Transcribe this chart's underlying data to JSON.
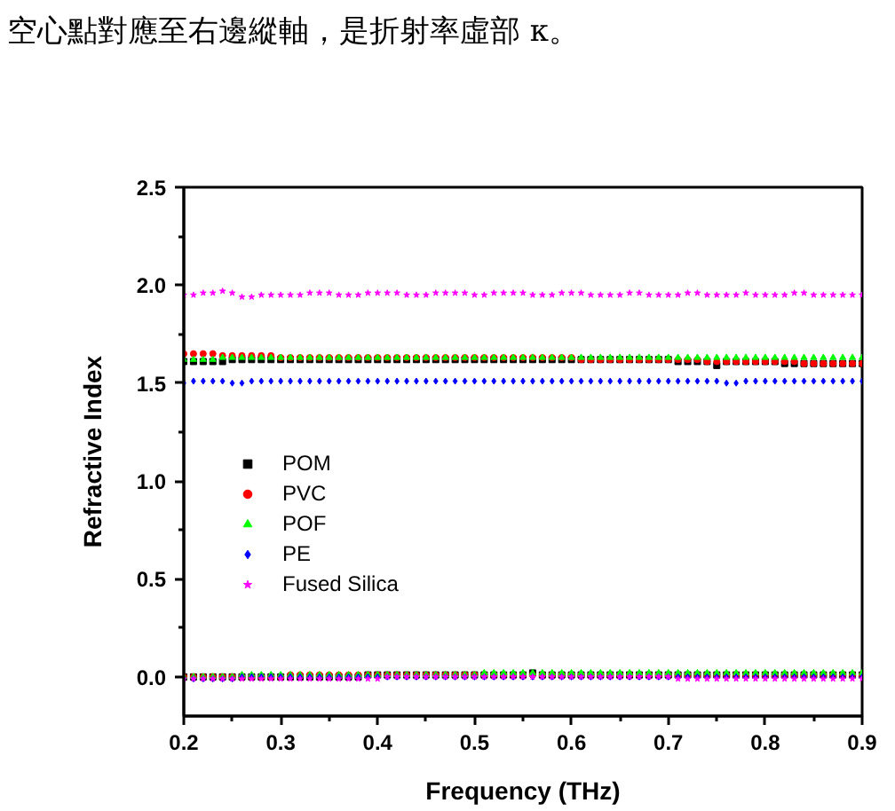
{
  "chart_data": {
    "type": "scatter",
    "annotations": [
      "空心點對應至右邊縱軸，是折射率虛部 κ。"
    ],
    "xlabel": "Frequency (THz)",
    "ylabel": "Refractive Index",
    "xlim": [
      0.2,
      0.9
    ],
    "xticks": [
      0.2,
      0.3,
      0.4,
      0.5,
      0.6,
      0.7,
      0.8,
      0.9
    ],
    "ylim": [
      -0.2,
      2.5
    ],
    "yticks": [
      {
        "value": 0,
        "label": "0.0"
      },
      0.5,
      {
        "value": 1,
        "label": "1.0"
      },
      1.5,
      {
        "value": 2,
        "label": "2.0"
      },
      2.5
    ],
    "legend": "left",
    "x": [
      0.2,
      0.21,
      0.22,
      0.23,
      0.24,
      0.25,
      0.26,
      0.27,
      0.28,
      0.29,
      0.3,
      0.31,
      0.32,
      0.33,
      0.34,
      0.35,
      0.36,
      0.37,
      0.38,
      0.39,
      0.4,
      0.41,
      0.42,
      0.43,
      0.44,
      0.45,
      0.46,
      0.47,
      0.48,
      0.49,
      0.5,
      0.51,
      0.52,
      0.53,
      0.54,
      0.55,
      0.56,
      0.57,
      0.58,
      0.59,
      0.6,
      0.61,
      0.62,
      0.63,
      0.64,
      0.65,
      0.66,
      0.67,
      0.68,
      0.69,
      0.7,
      0.71,
      0.72,
      0.73,
      0.74,
      0.75,
      0.76,
      0.77,
      0.78,
      0.79,
      0.8,
      0.81,
      0.82,
      0.83,
      0.84,
      0.85,
      0.86,
      0.87,
      0.88,
      0.89,
      0.9
    ],
    "series": [
      {
        "name": "POM",
        "color": "#000000",
        "marker": "square",
        "values": [
          1.61,
          1.61,
          1.61,
          1.61,
          1.61,
          1.62,
          1.62,
          1.62,
          1.62,
          1.62,
          1.62,
          1.62,
          1.62,
          1.62,
          1.62,
          1.62,
          1.62,
          1.62,
          1.62,
          1.62,
          1.62,
          1.62,
          1.62,
          1.62,
          1.62,
          1.62,
          1.62,
          1.62,
          1.62,
          1.62,
          1.62,
          1.62,
          1.62,
          1.62,
          1.62,
          1.62,
          1.62,
          1.62,
          1.62,
          1.62,
          1.62,
          1.62,
          1.62,
          1.62,
          1.62,
          1.62,
          1.62,
          1.62,
          1.62,
          1.62,
          1.62,
          1.61,
          1.61,
          1.61,
          1.61,
          1.59,
          1.61,
          1.61,
          1.61,
          1.61,
          1.61,
          1.61,
          1.6,
          1.6,
          1.6,
          1.6,
          1.6,
          1.6,
          1.6,
          1.6,
          1.6
        ]
      },
      {
        "name": "PVC",
        "color": "#ff0000",
        "marker": "circle",
        "values": [
          1.65,
          1.65,
          1.65,
          1.65,
          1.64,
          1.64,
          1.64,
          1.64,
          1.64,
          1.64,
          1.63,
          1.63,
          1.63,
          1.63,
          1.63,
          1.63,
          1.63,
          1.63,
          1.63,
          1.63,
          1.63,
          1.63,
          1.63,
          1.63,
          1.63,
          1.63,
          1.63,
          1.63,
          1.63,
          1.63,
          1.63,
          1.63,
          1.63,
          1.63,
          1.63,
          1.63,
          1.63,
          1.63,
          1.63,
          1.63,
          1.63,
          1.62,
          1.62,
          1.62,
          1.62,
          1.62,
          1.62,
          1.62,
          1.62,
          1.62,
          1.62,
          1.62,
          1.62,
          1.62,
          1.61,
          1.61,
          1.61,
          1.61,
          1.61,
          1.61,
          1.61,
          1.61,
          1.61,
          1.61,
          1.6,
          1.6,
          1.6,
          1.6,
          1.6,
          1.6,
          1.6
        ]
      },
      {
        "name": "POF",
        "color": "#00ff00",
        "marker": "triangle",
        "values": [
          1.62,
          1.62,
          1.62,
          1.62,
          1.63,
          1.63,
          1.63,
          1.63,
          1.63,
          1.63,
          1.63,
          1.63,
          1.63,
          1.63,
          1.63,
          1.63,
          1.63,
          1.63,
          1.63,
          1.63,
          1.63,
          1.63,
          1.63,
          1.63,
          1.63,
          1.63,
          1.63,
          1.63,
          1.63,
          1.63,
          1.63,
          1.63,
          1.63,
          1.63,
          1.63,
          1.63,
          1.63,
          1.63,
          1.63,
          1.63,
          1.63,
          1.63,
          1.63,
          1.63,
          1.63,
          1.63,
          1.63,
          1.63,
          1.63,
          1.63,
          1.63,
          1.63,
          1.63,
          1.63,
          1.63,
          1.63,
          1.63,
          1.63,
          1.63,
          1.63,
          1.63,
          1.63,
          1.63,
          1.63,
          1.63,
          1.63,
          1.63,
          1.63,
          1.63,
          1.63,
          1.63
        ]
      },
      {
        "name": "PE",
        "color": "#0000ff",
        "marker": "diamond",
        "values": [
          1.5,
          1.51,
          1.51,
          1.51,
          1.51,
          1.5,
          1.5,
          1.51,
          1.51,
          1.51,
          1.51,
          1.51,
          1.51,
          1.51,
          1.51,
          1.51,
          1.51,
          1.51,
          1.51,
          1.51,
          1.51,
          1.51,
          1.51,
          1.51,
          1.51,
          1.51,
          1.51,
          1.51,
          1.51,
          1.51,
          1.51,
          1.51,
          1.51,
          1.51,
          1.51,
          1.51,
          1.51,
          1.51,
          1.51,
          1.51,
          1.51,
          1.51,
          1.51,
          1.51,
          1.51,
          1.51,
          1.51,
          1.51,
          1.51,
          1.51,
          1.51,
          1.51,
          1.51,
          1.51,
          1.51,
          1.51,
          1.5,
          1.5,
          1.51,
          1.51,
          1.51,
          1.51,
          1.51,
          1.51,
          1.51,
          1.51,
          1.51,
          1.51,
          1.51,
          1.51,
          1.51
        ]
      },
      {
        "name": "Fused Silica",
        "color": "#ff00ff",
        "marker": "star",
        "values": [
          1.95,
          1.95,
          1.96,
          1.96,
          1.97,
          1.96,
          1.94,
          1.94,
          1.95,
          1.95,
          1.95,
          1.95,
          1.95,
          1.96,
          1.96,
          1.96,
          1.95,
          1.95,
          1.95,
          1.96,
          1.96,
          1.96,
          1.96,
          1.95,
          1.95,
          1.95,
          1.96,
          1.96,
          1.96,
          1.96,
          1.95,
          1.95,
          1.96,
          1.96,
          1.96,
          1.96,
          1.95,
          1.95,
          1.95,
          1.96,
          1.96,
          1.96,
          1.95,
          1.95,
          1.95,
          1.95,
          1.96,
          1.96,
          1.95,
          1.95,
          1.95,
          1.95,
          1.96,
          1.96,
          1.95,
          1.95,
          1.95,
          1.95,
          1.96,
          1.95,
          1.95,
          1.95,
          1.95,
          1.96,
          1.96,
          1.95,
          1.95,
          1.95,
          1.95,
          1.95,
          1.95
        ]
      },
      {
        "color": "#000000",
        "marker": "square",
        "values": [
          0,
          0,
          0,
          0,
          0,
          0,
          0,
          0,
          0,
          0,
          0,
          0,
          0,
          0,
          0,
          0,
          0,
          0,
          0,
          0.01,
          0.01,
          0.01,
          0.01,
          0.01,
          0.01,
          0.01,
          0.01,
          0.01,
          0.01,
          0.01,
          0.01,
          0.01,
          0.01,
          0.01,
          0.01,
          0.01,
          0.02,
          0.01,
          0.01,
          0.01,
          0.01,
          0.01,
          0.01,
          0.01,
          0.01,
          0.01,
          0.01,
          0.01,
          0.01,
          0.01,
          0.01,
          0.01,
          0.01,
          0.01,
          0.01,
          0.01,
          0.01,
          0.01,
          0.01,
          0.01,
          0.01,
          0.01,
          0.01,
          0.01,
          0.01,
          0.01,
          0.01,
          0.01,
          0.01,
          0.01,
          0.01
        ]
      },
      {
        "color": "#ff0000",
        "marker": "circle",
        "values": [
          0,
          0,
          0,
          0,
          0,
          0,
          0,
          0,
          0,
          0,
          0,
          0.01,
          0.01,
          0.01,
          0.01,
          0.01,
          0.01,
          0.01,
          0.01,
          0.01,
          0.01,
          0.01,
          0.01,
          0.01,
          0.01,
          0.01,
          0.01,
          0.01,
          0.01,
          0.01,
          0.01,
          0.01,
          0.01,
          0.01,
          0.01,
          0.01,
          0.01,
          0.01,
          0.01,
          0.01,
          0.01,
          0.01,
          0.01,
          0.01,
          0.01,
          0.01,
          0.01,
          0.01,
          0.01,
          0.01,
          0.01,
          0.01,
          0.01,
          0.01,
          0.01,
          0.01,
          0.01,
          0.01,
          0.01,
          0.01,
          0.01,
          0.01,
          0.01,
          0.01,
          0.01,
          0.01,
          0.01,
          0.01,
          0.01,
          0.01,
          0.01
        ]
      },
      {
        "color": "#00ff00",
        "marker": "triangle",
        "values": [
          0,
          0,
          0,
          0,
          0,
          0,
          0.01,
          0.01,
          0.01,
          0.01,
          0.01,
          0.01,
          0.01,
          0.01,
          0.01,
          0.01,
          0.01,
          0.01,
          0.01,
          0.01,
          0.01,
          0.01,
          0.01,
          0.01,
          0.01,
          0.01,
          0.01,
          0.01,
          0.01,
          0.01,
          0.01,
          0.02,
          0.02,
          0.02,
          0.02,
          0.02,
          0.02,
          0.02,
          0.02,
          0.02,
          0.02,
          0.02,
          0.02,
          0.02,
          0.02,
          0.02,
          0.02,
          0.02,
          0.02,
          0.02,
          0.02,
          0.02,
          0.02,
          0.02,
          0.02,
          0.02,
          0.02,
          0.02,
          0.02,
          0.02,
          0.02,
          0.02,
          0.02,
          0.02,
          0.02,
          0.02,
          0.02,
          0.02,
          0.02,
          0.02,
          0.02
        ]
      },
      {
        "color": "#0000ff",
        "marker": "diamond",
        "values": [
          -0.01,
          -0.01,
          -0.01,
          -0.01,
          -0.01,
          -0.01,
          0,
          0,
          0,
          0,
          0,
          0,
          0,
          0,
          0,
          0,
          0,
          0,
          0,
          0,
          0,
          0,
          0,
          0,
          0,
          0,
          0,
          0,
          0,
          0,
          0,
          0,
          0,
          0,
          0,
          0,
          0,
          0,
          0,
          0,
          0,
          0,
          0,
          0,
          0,
          0,
          0,
          0,
          0,
          0,
          0,
          0,
          0,
          0,
          0,
          0,
          0,
          0,
          0,
          0,
          0,
          0,
          0,
          0,
          0,
          0,
          0,
          0,
          0,
          0,
          0
        ]
      },
      {
        "color": "#ff00ff",
        "marker": "star",
        "values": [
          -0.01,
          -0.01,
          -0.01,
          -0.01,
          -0.01,
          -0.01,
          -0.01,
          -0.01,
          -0.01,
          -0.01,
          -0.01,
          -0.01,
          -0.01,
          -0.01,
          -0.01,
          -0.01,
          -0.01,
          -0.01,
          -0.01,
          -0.01,
          -0.01,
          0,
          0,
          0,
          0,
          0,
          0,
          0,
          0,
          0,
          0,
          0,
          0,
          0,
          0,
          0,
          0,
          0,
          0,
          0,
          0,
          0,
          0,
          0,
          0,
          0,
          0,
          0,
          0,
          0,
          0,
          -0.01,
          -0.01,
          -0.01,
          -0.01,
          -0.01,
          -0.01,
          -0.01,
          -0.01,
          -0.01,
          -0.01,
          -0.01,
          -0.01,
          -0.01,
          -0.01,
          -0.01,
          -0.01,
          -0.01,
          -0.01,
          -0.01,
          -0.01
        ]
      }
    ]
  }
}
